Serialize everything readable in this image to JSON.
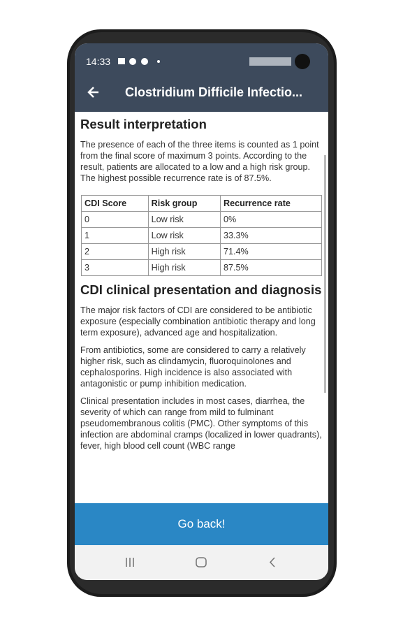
{
  "status_bar": {
    "time": "14:33"
  },
  "app_bar": {
    "title": "Clostridium Difficile Infectio..."
  },
  "content": {
    "section1": {
      "heading": "Result interpretation",
      "paragraph": "The presence of each of the three items is counted as 1 point from the final score of maximum 3 points. According to the result, patients are allocated to a low and a high risk group. The highest possible recurrence rate is of 87.5%."
    },
    "table": {
      "header": [
        "CDI Score",
        "Risk group",
        "Recurrence rate"
      ],
      "rows": [
        [
          "0",
          "Low risk",
          "0%"
        ],
        [
          "1",
          "Low risk",
          "33.3%"
        ],
        [
          "2",
          "High risk",
          "71.4%"
        ],
        [
          "3",
          "High risk",
          "87.5%"
        ]
      ]
    },
    "section2": {
      "heading": "CDI clinical presentation and diagnosis",
      "paragraphs": [
        "The major risk factors of CDI are considered to be antibiotic exposure (especially combination antibiotic therapy and long term exposure), advanced age and hospitalization.",
        "From antibiotics, some are considered to carry a relatively higher risk, such as clindamycin, fluoroquinolones and cephalosporins. High incidence is also associated with antagonistic or pump inhibition medication.",
        "Clinical presentation includes in most cases, diarrhea, the severity of which can range from mild to fulminant pseudomembranous colitis (PMC). Other symptoms of this infection are abdominal cramps (localized in lower quadrants), fever, high blood cell count (WBC range"
      ]
    }
  },
  "button": {
    "label": "Go back!"
  }
}
